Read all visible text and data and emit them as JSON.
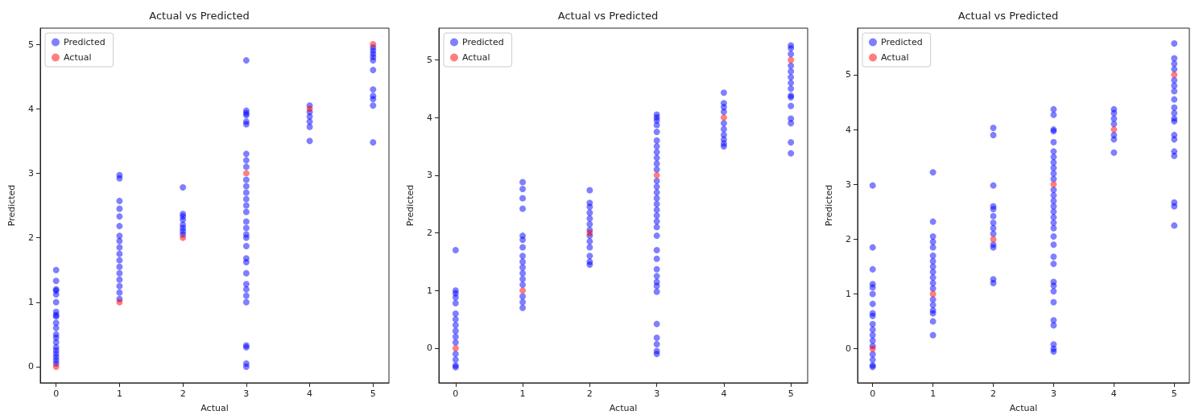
{
  "chart_data": [
    {
      "type": "scatter",
      "title": "Actual vs Predicted",
      "xlabel": "Actual",
      "ylabel": "Predicted",
      "xlim": [
        -0.25,
        5.25
      ],
      "ylim": [
        -0.25,
        5.25
      ],
      "xticks": [
        0,
        1,
        2,
        3,
        4,
        5
      ],
      "yticks": [
        0,
        1,
        2,
        3,
        4,
        5
      ],
      "grid": false,
      "legend": "top left",
      "marker": "circle",
      "series": [
        {
          "name": "Predicted",
          "color": "#0000ff",
          "x": [
            0,
            0,
            0,
            0,
            0,
            0,
            0,
            0,
            0,
            0,
            0,
            0,
            0,
            0,
            0,
            0,
            0,
            0,
            0,
            0,
            1,
            1,
            1,
            1,
            1,
            1,
            1,
            1,
            1,
            1,
            1,
            1,
            1,
            1,
            1,
            1,
            1,
            2,
            2,
            2,
            2,
            2,
            2,
            2,
            2,
            3,
            3,
            3,
            3,
            3,
            3,
            3,
            3,
            3,
            3,
            3,
            3,
            3,
            3,
            3,
            3,
            3,
            3,
            3,
            3,
            3,
            3,
            3,
            3,
            3,
            3,
            3,
            3,
            3,
            3,
            3,
            4,
            4,
            4,
            4,
            4,
            4,
            5,
            5,
            5,
            5,
            5,
            5,
            5,
            5,
            5,
            5,
            5
          ],
          "values": [
            1.5,
            1.33,
            1.2,
            1.18,
            1.12,
            1.0,
            0.85,
            0.8,
            0.78,
            0.68,
            0.6,
            0.5,
            0.45,
            0.38,
            0.3,
            0.25,
            0.2,
            0.15,
            0.1,
            0.05,
            2.97,
            2.92,
            2.57,
            2.45,
            2.33,
            2.18,
            2.03,
            1.95,
            1.85,
            1.75,
            1.65,
            1.55,
            1.45,
            1.35,
            1.25,
            1.15,
            1.05,
            2.78,
            2.37,
            2.33,
            2.28,
            2.2,
            2.15,
            2.1,
            2.05,
            4.75,
            3.97,
            3.93,
            3.9,
            3.8,
            3.76,
            3.3,
            3.2,
            3.1,
            2.9,
            2.8,
            2.7,
            2.6,
            2.5,
            2.4,
            2.25,
            2.15,
            2.05,
            2.0,
            1.87,
            1.68,
            1.62,
            1.45,
            1.28,
            1.2,
            1.1,
            1.0,
            0.33,
            0.3,
            0.05,
            0.0,
            4.05,
            3.95,
            3.88,
            3.8,
            3.72,
            3.5,
            4.95,
            4.9,
            4.85,
            4.8,
            4.75,
            4.6,
            4.3,
            4.2,
            4.15,
            4.05,
            3.48
          ]
        },
        {
          "name": "Actual",
          "color": "#ff0000",
          "x": [
            0,
            1,
            2,
            3,
            4,
            5
          ],
          "values": [
            0,
            1,
            2,
            3,
            4,
            5
          ]
        }
      ]
    },
    {
      "type": "scatter",
      "title": "Actual vs Predicted",
      "xlabel": "Actual",
      "ylabel": "Predicted",
      "xlim": [
        -0.25,
        5.25
      ],
      "ylim": [
        -0.6,
        5.55
      ],
      "xticks": [
        0,
        1,
        2,
        3,
        4,
        5
      ],
      "yticks": [
        0,
        1,
        2,
        3,
        4,
        5
      ],
      "grid": false,
      "legend": "top left",
      "marker": "circle",
      "series": [
        {
          "name": "Predicted",
          "color": "#0000ff",
          "x": [
            0,
            0,
            0,
            0,
            0,
            0,
            0,
            0,
            0,
            0,
            0,
            0,
            0,
            0,
            0,
            1,
            1,
            1,
            1,
            1,
            1,
            1,
            1,
            1,
            1,
            1,
            1,
            1,
            1,
            1,
            1,
            2,
            2,
            2,
            2,
            2,
            2,
            2,
            2,
            2,
            2,
            2,
            2,
            2,
            3,
            3,
            3,
            3,
            3,
            3,
            3,
            3,
            3,
            3,
            3,
            3,
            3,
            3,
            3,
            3,
            3,
            3,
            3,
            3,
            3,
            3,
            3,
            3,
            3,
            3,
            3,
            3,
            3,
            3,
            3,
            3,
            3,
            4,
            4,
            4,
            4,
            4,
            4,
            4,
            4,
            4,
            4,
            5,
            5,
            5,
            5,
            5,
            5,
            5,
            5,
            5,
            5,
            5,
            5,
            5,
            5,
            5
          ],
          "values": [
            1.7,
            1.0,
            0.95,
            0.88,
            0.78,
            0.6,
            0.5,
            0.4,
            0.3,
            0.2,
            0.1,
            -0.1,
            -0.2,
            -0.3,
            -0.33,
            2.88,
            2.76,
            2.6,
            2.42,
            1.95,
            1.88,
            1.75,
            1.6,
            1.5,
            1.4,
            1.3,
            1.2,
            1.1,
            0.9,
            0.8,
            0.7,
            2.74,
            2.52,
            2.45,
            2.35,
            2.25,
            2.15,
            2.05,
            1.95,
            1.85,
            1.75,
            1.6,
            1.5,
            1.45,
            4.05,
            4.0,
            3.95,
            3.87,
            3.75,
            3.6,
            3.5,
            3.4,
            3.3,
            3.2,
            3.1,
            2.9,
            2.8,
            2.7,
            2.6,
            2.5,
            2.4,
            2.3,
            2.2,
            2.1,
            1.95,
            1.7,
            1.55,
            1.37,
            1.25,
            1.15,
            1.08,
            0.98,
            0.42,
            0.18,
            0.07,
            -0.05,
            -0.1,
            4.43,
            4.25,
            4.18,
            4.1,
            3.9,
            3.8,
            3.7,
            3.62,
            3.55,
            3.5,
            5.25,
            5.2,
            5.1,
            4.9,
            4.8,
            4.7,
            4.6,
            4.5,
            4.38,
            4.35,
            4.2,
            3.98,
            3.9,
            3.57,
            3.38
          ]
        },
        {
          "name": "Actual",
          "color": "#ff0000",
          "x": [
            0,
            1,
            2,
            3,
            4,
            5
          ],
          "values": [
            0,
            1,
            2,
            3,
            4,
            5
          ]
        }
      ]
    },
    {
      "type": "scatter",
      "title": "Actual vs Predicted",
      "xlabel": "Actual",
      "ylabel": "Predicted",
      "xlim": [
        -0.25,
        5.25
      ],
      "ylim": [
        -0.62,
        5.85
      ],
      "xticks": [
        0,
        1,
        2,
        3,
        4,
        5
      ],
      "yticks": [
        0,
        1,
        2,
        3,
        4,
        5
      ],
      "grid": false,
      "legend": "top left",
      "marker": "circle",
      "series": [
        {
          "name": "Predicted",
          "color": "#0000ff",
          "x": [
            0,
            0,
            0,
            0,
            0,
            0,
            0,
            0,
            0,
            0,
            0,
            0,
            0,
            0,
            0,
            0,
            0,
            0,
            1,
            1,
            1,
            1,
            1,
            1,
            1,
            1,
            1,
            1,
            1,
            1,
            1,
            1,
            1,
            1,
            1,
            1,
            2,
            2,
            2,
            2,
            2,
            2,
            2,
            2,
            2,
            2,
            2,
            2,
            2,
            3,
            3,
            3,
            3,
            3,
            3,
            3,
            3,
            3,
            3,
            3,
            3,
            3,
            3,
            3,
            3,
            3,
            3,
            3,
            3,
            3,
            3,
            3,
            3,
            3,
            3,
            3,
            3,
            3,
            3,
            3,
            3,
            4,
            4,
            4,
            4,
            4,
            4,
            4,
            5,
            5,
            5,
            5,
            5,
            5,
            5,
            5,
            5,
            5,
            5,
            5,
            5,
            5,
            5,
            5,
            5,
            5,
            5
          ],
          "values": [
            2.98,
            1.85,
            1.45,
            1.18,
            1.12,
            1.0,
            0.82,
            0.65,
            0.6,
            0.45,
            0.35,
            0.25,
            0.15,
            0.05,
            -0.1,
            -0.2,
            -0.3,
            -0.33,
            3.22,
            2.32,
            2.05,
            1.95,
            1.85,
            1.7,
            1.6,
            1.5,
            1.4,
            1.3,
            1.2,
            1.1,
            0.9,
            0.8,
            0.7,
            0.65,
            0.5,
            0.25,
            4.03,
            3.9,
            2.98,
            2.6,
            2.55,
            2.42,
            2.3,
            2.2,
            2.1,
            1.9,
            1.85,
            1.27,
            1.2,
            4.37,
            4.27,
            4.0,
            3.97,
            3.77,
            3.6,
            3.5,
            3.4,
            3.3,
            3.2,
            3.1,
            2.9,
            2.8,
            2.7,
            2.6,
            2.5,
            2.4,
            2.3,
            2.2,
            2.05,
            1.9,
            1.68,
            1.55,
            1.22,
            1.15,
            1.05,
            0.85,
            0.52,
            0.43,
            0.08,
            0.0,
            -0.05,
            4.37,
            4.3,
            4.2,
            4.1,
            3.9,
            3.82,
            3.58,
            5.57,
            5.3,
            5.2,
            5.1,
            4.9,
            4.8,
            4.7,
            4.55,
            4.4,
            4.3,
            4.2,
            4.15,
            3.9,
            3.82,
            3.6,
            3.52,
            2.67,
            2.6,
            2.25
          ]
        },
        {
          "name": "Actual",
          "color": "#ff0000",
          "x": [
            0,
            1,
            2,
            3,
            4,
            5
          ],
          "values": [
            0,
            1,
            2,
            3,
            4,
            5
          ]
        }
      ]
    }
  ]
}
